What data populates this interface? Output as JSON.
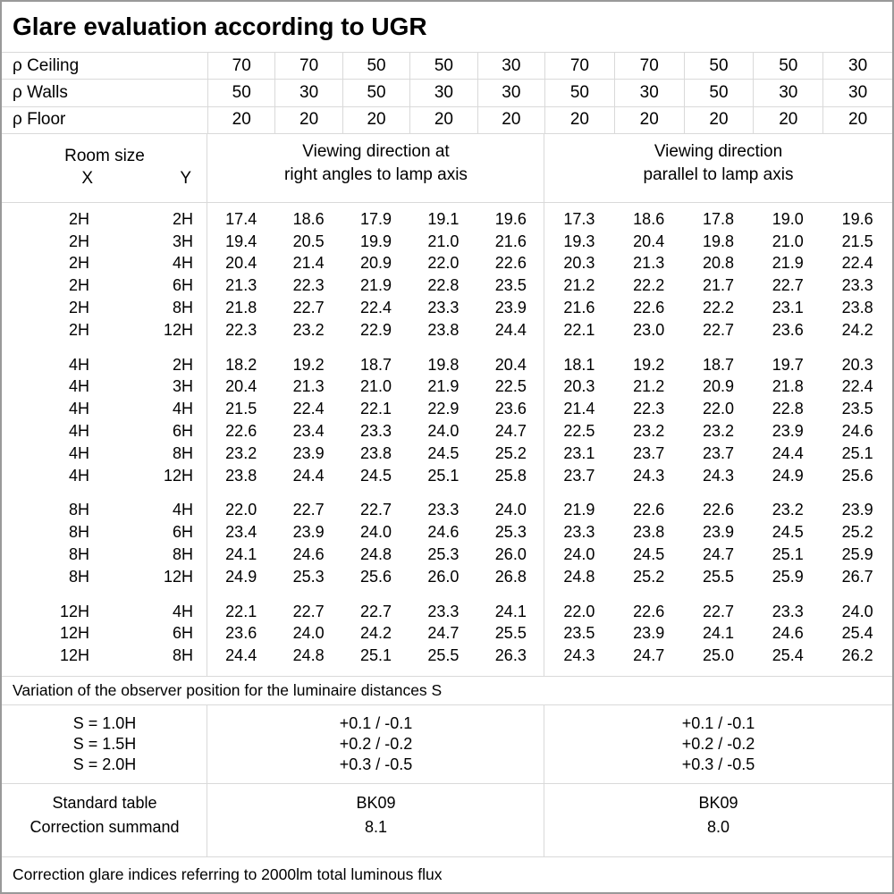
{
  "title": "Glare evaluation according to UGR",
  "colors": {
    "outer_border": "#999999",
    "grid_line": "#d9d9d9",
    "text": "#000000",
    "background": "#ffffff"
  },
  "reflectance": {
    "rows": [
      {
        "label": "ρ Ceiling",
        "values": [
          "70",
          "70",
          "50",
          "50",
          "30",
          "70",
          "70",
          "50",
          "50",
          "30"
        ]
      },
      {
        "label": "ρ Walls",
        "values": [
          "50",
          "30",
          "50",
          "30",
          "30",
          "50",
          "30",
          "50",
          "30",
          "30"
        ]
      },
      {
        "label": "ρ Floor",
        "values": [
          "20",
          "20",
          "20",
          "20",
          "20",
          "20",
          "20",
          "20",
          "20",
          "20"
        ]
      }
    ]
  },
  "viewing_headers": {
    "room_size": "Room size",
    "x_label": "X",
    "y_label": "Y",
    "left_line1": "Viewing direction at",
    "left_line2": "right angles to lamp axis",
    "right_line1": "Viewing direction",
    "right_line2": "parallel to lamp axis"
  },
  "ugr": {
    "blocks": [
      {
        "rows": [
          {
            "x": "2H",
            "y": "2H",
            "left": [
              "17.4",
              "18.6",
              "17.9",
              "19.1",
              "19.6"
            ],
            "right": [
              "17.3",
              "18.6",
              "17.8",
              "19.0",
              "19.6"
            ]
          },
          {
            "x": "2H",
            "y": "3H",
            "left": [
              "19.4",
              "20.5",
              "19.9",
              "21.0",
              "21.6"
            ],
            "right": [
              "19.3",
              "20.4",
              "19.8",
              "21.0",
              "21.5"
            ]
          },
          {
            "x": "2H",
            "y": "4H",
            "left": [
              "20.4",
              "21.4",
              "20.9",
              "22.0",
              "22.6"
            ],
            "right": [
              "20.3",
              "21.3",
              "20.8",
              "21.9",
              "22.4"
            ]
          },
          {
            "x": "2H",
            "y": "6H",
            "left": [
              "21.3",
              "22.3",
              "21.9",
              "22.8",
              "23.5"
            ],
            "right": [
              "21.2",
              "22.2",
              "21.7",
              "22.7",
              "23.3"
            ]
          },
          {
            "x": "2H",
            "y": "8H",
            "left": [
              "21.8",
              "22.7",
              "22.4",
              "23.3",
              "23.9"
            ],
            "right": [
              "21.6",
              "22.6",
              "22.2",
              "23.1",
              "23.8"
            ]
          },
          {
            "x": "2H",
            "y": "12H",
            "left": [
              "22.3",
              "23.2",
              "22.9",
              "23.8",
              "24.4"
            ],
            "right": [
              "22.1",
              "23.0",
              "22.7",
              "23.6",
              "24.2"
            ]
          }
        ]
      },
      {
        "rows": [
          {
            "x": "4H",
            "y": "2H",
            "left": [
              "18.2",
              "19.2",
              "18.7",
              "19.8",
              "20.4"
            ],
            "right": [
              "18.1",
              "19.2",
              "18.7",
              "19.7",
              "20.3"
            ]
          },
          {
            "x": "4H",
            "y": "3H",
            "left": [
              "20.4",
              "21.3",
              "21.0",
              "21.9",
              "22.5"
            ],
            "right": [
              "20.3",
              "21.2",
              "20.9",
              "21.8",
              "22.4"
            ]
          },
          {
            "x": "4H",
            "y": "4H",
            "left": [
              "21.5",
              "22.4",
              "22.1",
              "22.9",
              "23.6"
            ],
            "right": [
              "21.4",
              "22.3",
              "22.0",
              "22.8",
              "23.5"
            ]
          },
          {
            "x": "4H",
            "y": "6H",
            "left": [
              "22.6",
              "23.4",
              "23.3",
              "24.0",
              "24.7"
            ],
            "right": [
              "22.5",
              "23.2",
              "23.2",
              "23.9",
              "24.6"
            ]
          },
          {
            "x": "4H",
            "y": "8H",
            "left": [
              "23.2",
              "23.9",
              "23.8",
              "24.5",
              "25.2"
            ],
            "right": [
              "23.1",
              "23.7",
              "23.7",
              "24.4",
              "25.1"
            ]
          },
          {
            "x": "4H",
            "y": "12H",
            "left": [
              "23.8",
              "24.4",
              "24.5",
              "25.1",
              "25.8"
            ],
            "right": [
              "23.7",
              "24.3",
              "24.3",
              "24.9",
              "25.6"
            ]
          }
        ]
      },
      {
        "rows": [
          {
            "x": "8H",
            "y": "4H",
            "left": [
              "22.0",
              "22.7",
              "22.7",
              "23.3",
              "24.0"
            ],
            "right": [
              "21.9",
              "22.6",
              "22.6",
              "23.2",
              "23.9"
            ]
          },
          {
            "x": "8H",
            "y": "6H",
            "left": [
              "23.4",
              "23.9",
              "24.0",
              "24.6",
              "25.3"
            ],
            "right": [
              "23.3",
              "23.8",
              "23.9",
              "24.5",
              "25.2"
            ]
          },
          {
            "x": "8H",
            "y": "8H",
            "left": [
              "24.1",
              "24.6",
              "24.8",
              "25.3",
              "26.0"
            ],
            "right": [
              "24.0",
              "24.5",
              "24.7",
              "25.1",
              "25.9"
            ]
          },
          {
            "x": "8H",
            "y": "12H",
            "left": [
              "24.9",
              "25.3",
              "25.6",
              "26.0",
              "26.8"
            ],
            "right": [
              "24.8",
              "25.2",
              "25.5",
              "25.9",
              "26.7"
            ]
          }
        ]
      },
      {
        "rows": [
          {
            "x": "12H",
            "y": "4H",
            "left": [
              "22.1",
              "22.7",
              "22.7",
              "23.3",
              "24.1"
            ],
            "right": [
              "22.0",
              "22.6",
              "22.7",
              "23.3",
              "24.0"
            ]
          },
          {
            "x": "12H",
            "y": "6H",
            "left": [
              "23.6",
              "24.0",
              "24.2",
              "24.7",
              "25.5"
            ],
            "right": [
              "23.5",
              "23.9",
              "24.1",
              "24.6",
              "25.4"
            ]
          },
          {
            "x": "12H",
            "y": "8H",
            "left": [
              "24.4",
              "24.8",
              "25.1",
              "25.5",
              "26.3"
            ],
            "right": [
              "24.3",
              "24.7",
              "25.0",
              "25.4",
              "26.2"
            ]
          }
        ]
      }
    ]
  },
  "variation": {
    "title": "Variation of the observer position for the luminaire distances S",
    "rows": [
      {
        "s": "S = 1.0H",
        "left": "+0.1 / -0.1",
        "right": "+0.1 / -0.1"
      },
      {
        "s": "S = 1.5H",
        "left": "+0.2 / -0.2",
        "right": "+0.2 / -0.2"
      },
      {
        "s": "S = 2.0H",
        "left": "+0.3 / -0.5",
        "right": "+0.3 / -0.5"
      }
    ]
  },
  "standard": {
    "label_table": "Standard table",
    "label_summand": "Correction summand",
    "left_table": "BK09",
    "left_summand": "8.1",
    "right_table": "BK09",
    "right_summand": "8.0"
  },
  "footer": "Correction glare indices referring to 2000lm total luminous flux"
}
